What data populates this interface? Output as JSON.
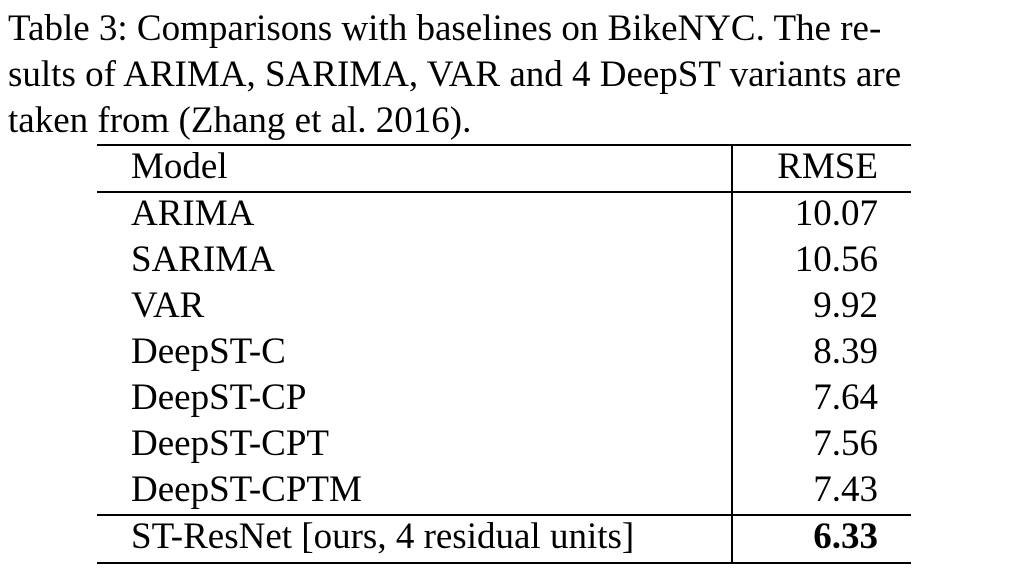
{
  "caption": {
    "lines": [
      "Table 3: Comparisons with baselines on BikeNYC. The re-",
      "sults of ARIMA, SARIMA, VAR and 4 DeepST variants are",
      "taken from (Zhang et al. 2016)."
    ]
  },
  "table": {
    "headers": {
      "model": "Model",
      "rmse": "RMSE"
    },
    "rows": [
      {
        "model": "ARIMA",
        "rmse": "10.07"
      },
      {
        "model": "SARIMA",
        "rmse": "10.56"
      },
      {
        "model": "VAR",
        "rmse": "9.92"
      },
      {
        "model": "DeepST-C",
        "rmse": "8.39"
      },
      {
        "model": "DeepST-CP",
        "rmse": "7.64"
      },
      {
        "model": "DeepST-CPT",
        "rmse": "7.56"
      },
      {
        "model": "DeepST-CPTM",
        "rmse": "7.43"
      }
    ],
    "ours": {
      "model": "ST-ResNet [ours, 4 residual units]",
      "rmse": "6.33"
    }
  }
}
